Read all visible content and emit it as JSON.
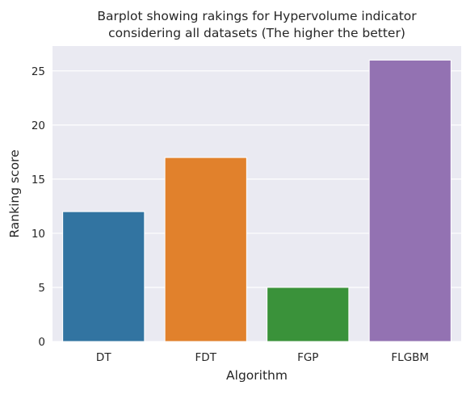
{
  "chart_data": {
    "type": "bar",
    "title_lines": [
      "Barplot showing rakings for Hypervolume indicator",
      "considering all datasets (The higher the better)"
    ],
    "xlabel": "Algorithm",
    "ylabel": "Ranking score",
    "categories": [
      "DT",
      "FDT",
      "FGP",
      "FLGBM"
    ],
    "values": [
      12,
      17,
      5,
      26
    ],
    "colors": [
      "#3274a1",
      "#e1812c",
      "#3a923a",
      "#9372b2"
    ],
    "ylim": [
      0,
      27.3
    ],
    "yticks": [
      0,
      5,
      10,
      15,
      20,
      25
    ],
    "grid": true,
    "background": "#eaeaf2"
  }
}
